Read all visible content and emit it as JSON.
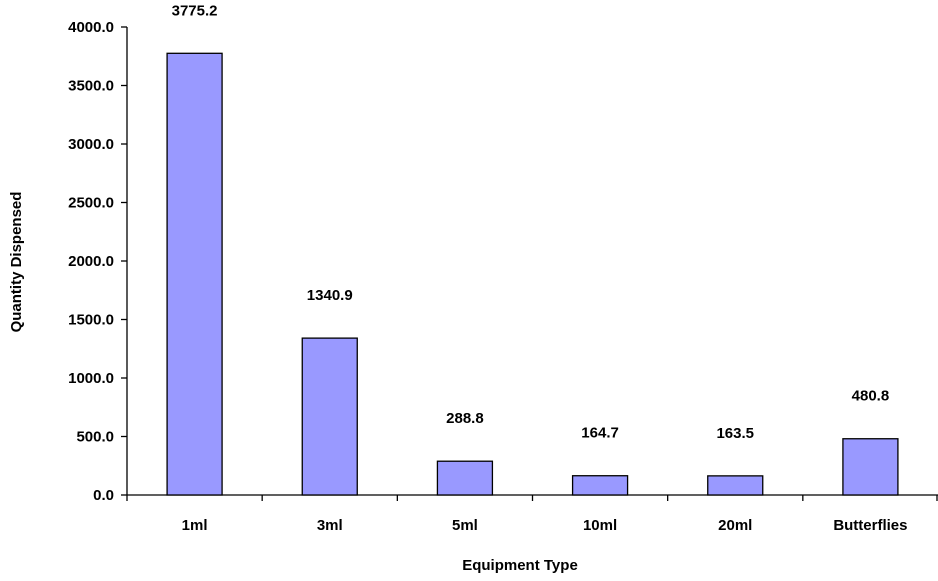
{
  "chart_data": {
    "type": "bar",
    "categories": [
      "1ml",
      "3ml",
      "5ml",
      "10ml",
      "20ml",
      "Butterflies"
    ],
    "values": [
      3775.2,
      1340.9,
      288.8,
      164.7,
      163.5,
      480.8
    ],
    "value_labels": [
      "3775.2",
      "1340.9",
      "288.8",
      "164.7",
      "163.5",
      "480.8"
    ],
    "xlabel": "Equipment Type",
    "ylabel": "Quantity Dispensed",
    "ylim": [
      0,
      4000
    ],
    "yticks": [
      "0.0",
      "500.0",
      "1000.0",
      "1500.0",
      "2000.0",
      "2500.0",
      "3000.0",
      "3500.0",
      "4000.0"
    ],
    "grid": false,
    "legend": "none",
    "bar_color": "#9999ff",
    "bar_outline": "#000000"
  }
}
